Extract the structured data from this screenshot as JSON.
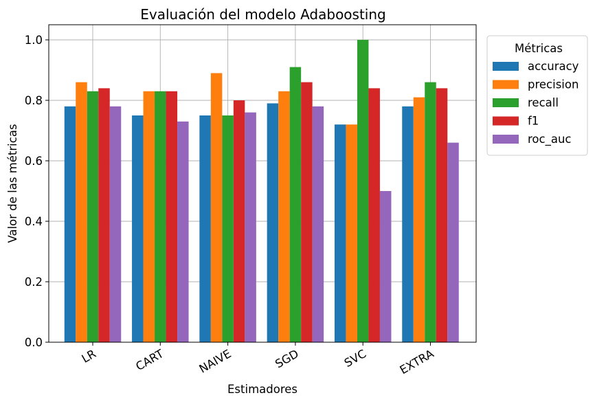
{
  "chart_data": {
    "type": "bar",
    "title": "Evaluación del modelo Adaboosting",
    "xlabel": "Estimadores",
    "ylabel": "Valor de las métricas",
    "categories": [
      "LR",
      "CART",
      "NAIVE",
      "SGD",
      "SVC",
      "EXTRA"
    ],
    "ylim": [
      0,
      1.05
    ],
    "yticks": [
      "0.0",
      "0.2",
      "0.4",
      "0.6",
      "0.8",
      "1.0"
    ],
    "grid": true,
    "legend": {
      "title": "Métricas",
      "placement": "outside-top-right"
    },
    "series": [
      {
        "name": "accuracy",
        "color": "#1f77b4",
        "values": [
          0.78,
          0.75,
          0.75,
          0.79,
          0.72,
          0.78
        ]
      },
      {
        "name": "precision",
        "color": "#ff7f0e",
        "values": [
          0.86,
          0.83,
          0.89,
          0.83,
          0.72,
          0.81
        ]
      },
      {
        "name": "recall",
        "color": "#2ca02c",
        "values": [
          0.83,
          0.83,
          0.75,
          0.91,
          1.0,
          0.86
        ]
      },
      {
        "name": "f1",
        "color": "#d62728",
        "values": [
          0.84,
          0.83,
          0.8,
          0.86,
          0.84,
          0.84
        ]
      },
      {
        "name": "roc_auc",
        "color": "#9467bd",
        "values": [
          0.78,
          0.73,
          0.76,
          0.78,
          0.5,
          0.66
        ]
      }
    ]
  }
}
